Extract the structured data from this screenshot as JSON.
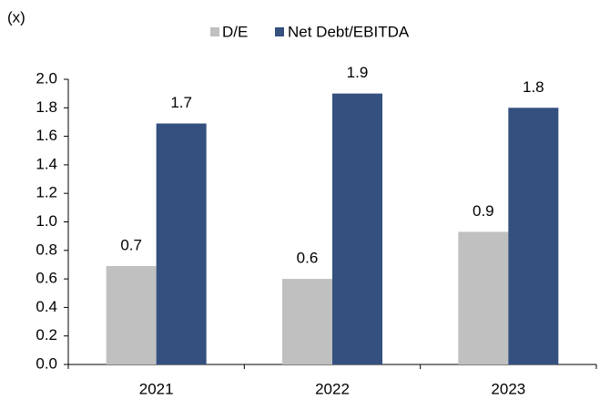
{
  "chart_data": {
    "type": "bar",
    "y_label": "(x)",
    "categories": [
      "2021",
      "2022",
      "2023"
    ],
    "series": [
      {
        "name": "D/E",
        "color": "#c0c0c0",
        "values": [
          0.69,
          0.6,
          0.93
        ],
        "value_labels": [
          "0.7",
          "0.6",
          "0.9"
        ]
      },
      {
        "name": "Net Debt/EBITDA",
        "color": "#34507f",
        "values": [
          1.69,
          1.9,
          1.8
        ],
        "value_labels": [
          "1.7",
          "1.9",
          "1.8"
        ]
      }
    ],
    "ylim": [
      0,
      2
    ],
    "yticks": [
      {
        "value": 0,
        "label": "0.0"
      },
      0.2,
      0.4,
      0.6,
      0.8,
      {
        "value": 1,
        "label": "1.0"
      },
      1.2,
      1.4,
      1.6,
      1.8,
      {
        "value": 2,
        "label": "2.0"
      }
    ],
    "grid": false,
    "legend": "top"
  }
}
